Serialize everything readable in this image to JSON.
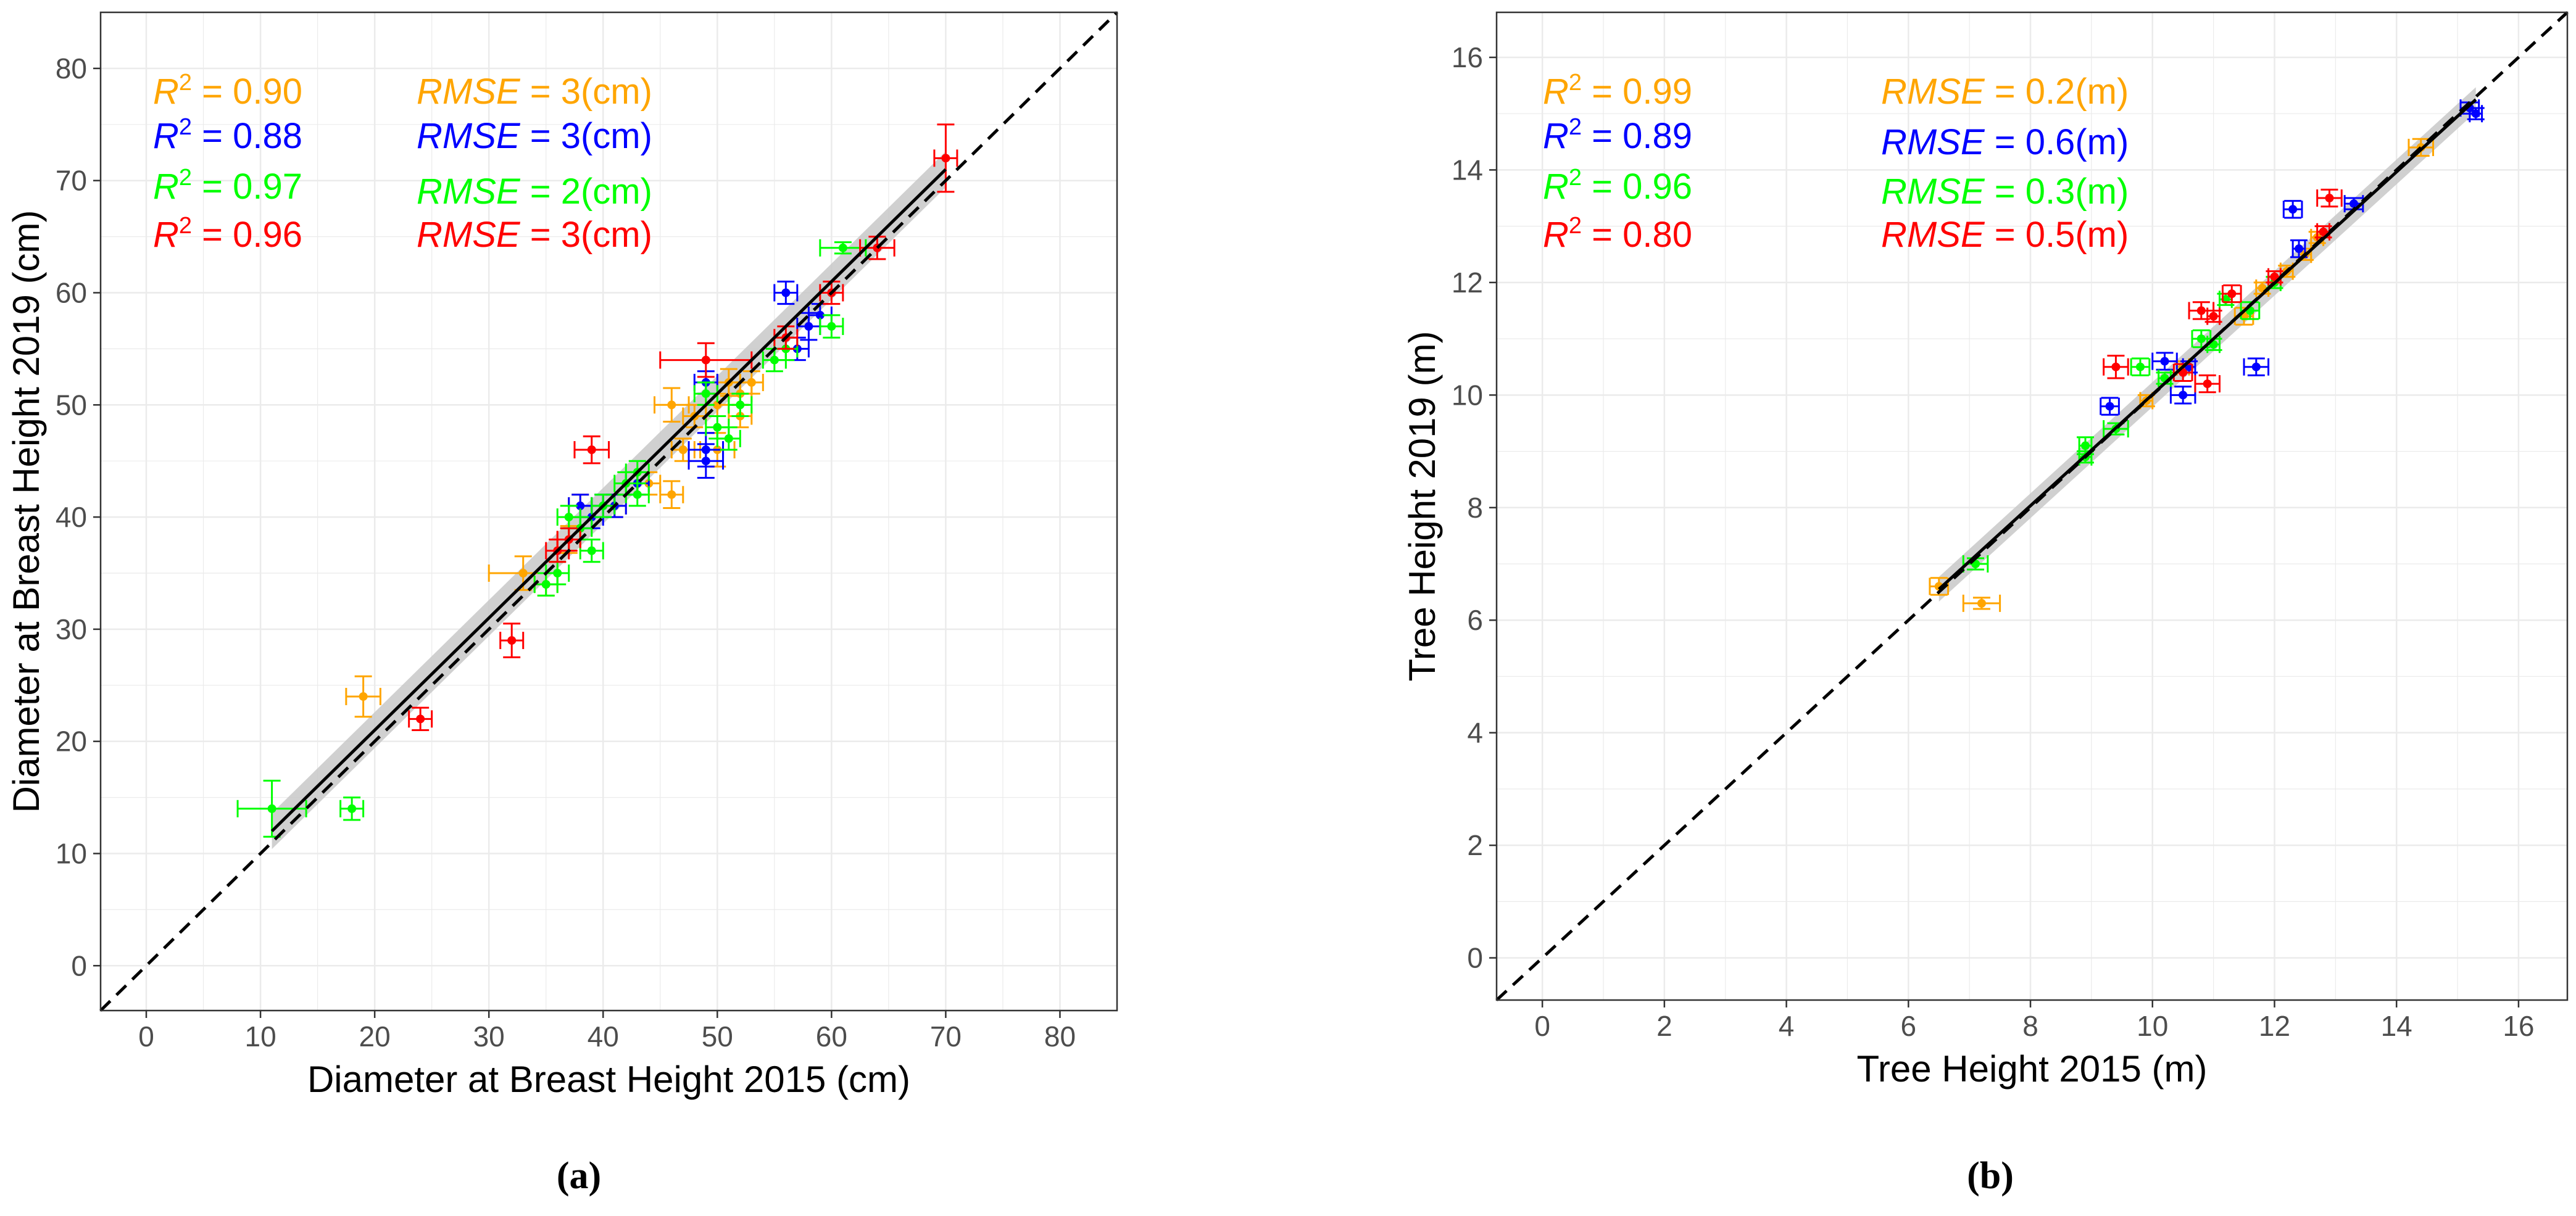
{
  "colors": {
    "orange": "#FFA500",
    "blue": "#0000FF",
    "green": "#00FF00",
    "red": "#FF0000",
    "grid": "#ebebeb",
    "band": "#c8c8c8"
  },
  "panels": [
    {
      "label": "(a)",
      "stat_unit": "cm",
      "stats": [
        {
          "color": "orange",
          "r2": "0.90",
          "rmse": "3"
        },
        {
          "color": "blue",
          "r2": "0.88",
          "rmse": "3"
        },
        {
          "color": "green",
          "r2": "0.97",
          "rmse": "2"
        },
        {
          "color": "red",
          "r2": "0.96",
          "rmse": "3"
        }
      ]
    },
    {
      "label": "(b)",
      "stat_unit": "m",
      "stats": [
        {
          "color": "orange",
          "r2": "0.99",
          "rmse": "0.2"
        },
        {
          "color": "blue",
          "r2": "0.89",
          "rmse": "0.6"
        },
        {
          "color": "green",
          "r2": "0.96",
          "rmse": "0.3"
        },
        {
          "color": "red",
          "r2": "0.80",
          "rmse": "0.5"
        }
      ]
    }
  ],
  "chart_data": [
    {
      "type": "scatter",
      "title": "",
      "xlabel": "Diameter at Breast Height 2015 (cm)",
      "ylabel": "Diameter at Breast Height 2019 (cm)",
      "xlim": [
        -4,
        85
      ],
      "ylim": [
        -4,
        85
      ],
      "xticks": [
        0,
        10,
        20,
        30,
        40,
        50,
        60,
        70,
        80
      ],
      "yticks": [
        0,
        10,
        20,
        30,
        40,
        50,
        60,
        70,
        80
      ],
      "grid": true,
      "reference_line": "1:1 dashed",
      "fit_line": {
        "x": [
          11,
          70
        ],
        "y": [
          12,
          71
        ],
        "band": 1.6
      },
      "series": [
        {
          "name": "orange",
          "color": "orange",
          "points": [
            [
              19,
              24,
              1.5,
              1.8
            ],
            [
              33,
              35,
              3,
              1.5
            ],
            [
              35,
              34,
              1,
              1
            ],
            [
              37,
              38,
              1,
              1.2
            ],
            [
              38,
              41,
              1,
              1
            ],
            [
              41,
              41,
              1,
              1
            ],
            [
              44,
              43,
              1,
              1
            ],
            [
              46,
              42,
              1,
              1.2
            ],
            [
              46,
              50,
              1.5,
              1.5
            ],
            [
              47,
              46,
              1,
              1
            ],
            [
              48,
              49,
              1,
              1
            ],
            [
              50,
              46,
              1.5,
              1.5
            ],
            [
              50,
              50,
              1,
              1
            ],
            [
              51,
              52,
              1,
              1.2
            ],
            [
              52,
              49,
              1,
              1
            ],
            [
              52,
              51,
              1,
              1
            ],
            [
              53,
              52,
              1,
              1
            ]
          ]
        },
        {
          "name": "blue",
          "color": "blue",
          "points": [
            [
              38,
              41,
              1,
              1
            ],
            [
              39,
              40,
              1,
              1
            ],
            [
              40,
              41,
              1,
              1
            ],
            [
              41,
              41,
              1,
              1
            ],
            [
              43,
              43,
              1,
              1
            ],
            [
              49,
              45,
              1.5,
              1.5
            ],
            [
              49,
              46,
              1.5,
              1.5
            ],
            [
              49,
              52,
              1,
              1
            ],
            [
              56,
              60,
              1,
              1
            ],
            [
              57,
              55,
              1,
              1
            ],
            [
              58,
              57,
              1,
              1.2
            ],
            [
              59,
              58,
              1,
              1
            ]
          ]
        },
        {
          "name": "green",
          "color": "green",
          "points": [
            [
              11,
              14,
              3,
              2.5
            ],
            [
              18,
              14,
              1,
              1
            ],
            [
              35,
              34,
              1,
              1
            ],
            [
              36,
              35,
              1,
              1
            ],
            [
              37,
              40,
              1,
              1
            ],
            [
              38,
              39,
              1,
              1
            ],
            [
              39,
              37,
              1,
              1
            ],
            [
              40,
              41,
              1,
              1
            ],
            [
              42,
              43,
              1,
              1
            ],
            [
              43,
              44,
              1,
              1
            ],
            [
              43,
              42,
              1,
              1
            ],
            [
              49,
              51,
              1,
              1
            ],
            [
              50,
              48,
              1,
              1
            ],
            [
              51,
              47,
              1,
              1
            ],
            [
              52,
              50,
              1,
              1
            ],
            [
              55,
              54,
              1,
              1
            ],
            [
              56,
              55,
              1,
              1
            ],
            [
              60,
              57,
              1,
              1
            ],
            [
              61,
              64,
              2,
              0.5
            ]
          ]
        },
        {
          "name": "red",
          "color": "red",
          "points": [
            [
              24,
              22,
              1,
              1
            ],
            [
              32,
              29,
              1,
              1.5
            ],
            [
              36,
              37,
              1,
              1
            ],
            [
              37,
              38,
              1,
              1
            ],
            [
              39,
              46,
              1.5,
              1.2
            ],
            [
              49,
              54,
              4,
              1.5
            ],
            [
              56,
              56,
              1,
              1
            ],
            [
              60,
              60,
              1,
              1
            ],
            [
              64,
              64,
              1.5,
              1
            ],
            [
              70,
              72,
              1,
              3
            ]
          ]
        }
      ]
    },
    {
      "type": "scatter",
      "title": "",
      "xlabel": "Tree Height 2015 (m)",
      "ylabel": "Tree Height 2019 (m)",
      "xlim": [
        -0.75,
        16.8
      ],
      "ylim": [
        -0.75,
        16.8
      ],
      "xticks": [
        0,
        2,
        4,
        6,
        8,
        10,
        12,
        14,
        16
      ],
      "yticks": [
        0,
        2,
        4,
        6,
        8,
        10,
        12,
        14,
        16
      ],
      "grid": true,
      "reference_line": "1:1 dashed",
      "fit_line": {
        "x": [
          6.5,
          15.3
        ],
        "y": [
          6.55,
          15.25
        ],
        "band": 0.22
      },
      "series": [
        {
          "name": "orange",
          "color": "orange",
          "points": [
            [
              6.5,
              6.6,
              0.15,
              0.15
            ],
            [
              7.2,
              6.3,
              0.3,
              0.1
            ],
            [
              9.9,
              9.9,
              0.1,
              0.1
            ],
            [
              10.5,
              10.5,
              0.1,
              0.1
            ],
            [
              11.5,
              11.4,
              0.15,
              0.15
            ],
            [
              11.8,
              11.9,
              0.1,
              0.1
            ],
            [
              12.2,
              12.2,
              0.1,
              0.1
            ],
            [
              12.5,
              12.5,
              0.1,
              0.1
            ],
            [
              12.7,
              12.8,
              0.1,
              0.1
            ],
            [
              14.4,
              14.4,
              0.2,
              0.15
            ]
          ]
        },
        {
          "name": "blue",
          "color": "blue",
          "points": [
            [
              9.3,
              9.8,
              0.15,
              0.15
            ],
            [
              10.2,
              10.6,
              0.2,
              0.15
            ],
            [
              10.5,
              10.0,
              0.2,
              0.15
            ],
            [
              10.6,
              10.5,
              0.1,
              0.1
            ],
            [
              11.7,
              10.5,
              0.2,
              0.15
            ],
            [
              12.3,
              13.3,
              0.15,
              0.15
            ],
            [
              12.4,
              12.6,
              0.1,
              0.15
            ],
            [
              13.3,
              13.4,
              0.15,
              0.1
            ],
            [
              15.2,
              15.1,
              0.15,
              0.1
            ],
            [
              15.3,
              15.0,
              0.1,
              0.1
            ]
          ]
        },
        {
          "name": "green",
          "color": "green",
          "points": [
            [
              7.1,
              7.0,
              0.2,
              0.1
            ],
            [
              8.9,
              9.1,
              0.1,
              0.15
            ],
            [
              8.9,
              8.9,
              0.1,
              0.1
            ],
            [
              9.4,
              9.4,
              0.2,
              0.1
            ],
            [
              9.8,
              10.5,
              0.15,
              0.15
            ],
            [
              10.2,
              10.3,
              0.1,
              0.1
            ],
            [
              10.8,
              11.0,
              0.15,
              0.15
            ],
            [
              11.0,
              10.9,
              0.1,
              0.1
            ],
            [
              11.2,
              11.7,
              0.1,
              0.1
            ],
            [
              11.6,
              11.5,
              0.15,
              0.15
            ],
            [
              12.0,
              12.0,
              0.1,
              0.1
            ]
          ]
        },
        {
          "name": "red",
          "color": "red",
          "points": [
            [
              9.4,
              10.5,
              0.2,
              0.2
            ],
            [
              10.5,
              10.4,
              0.15,
              0.15
            ],
            [
              10.9,
              10.2,
              0.2,
              0.15
            ],
            [
              10.8,
              11.5,
              0.2,
              0.15
            ],
            [
              11.0,
              11.4,
              0.1,
              0.1
            ],
            [
              11.3,
              11.8,
              0.15,
              0.15
            ],
            [
              12.0,
              12.1,
              0.1,
              0.1
            ],
            [
              12.9,
              13.5,
              0.2,
              0.15
            ],
            [
              12.8,
              12.9,
              0.1,
              0.1
            ]
          ]
        }
      ]
    }
  ]
}
